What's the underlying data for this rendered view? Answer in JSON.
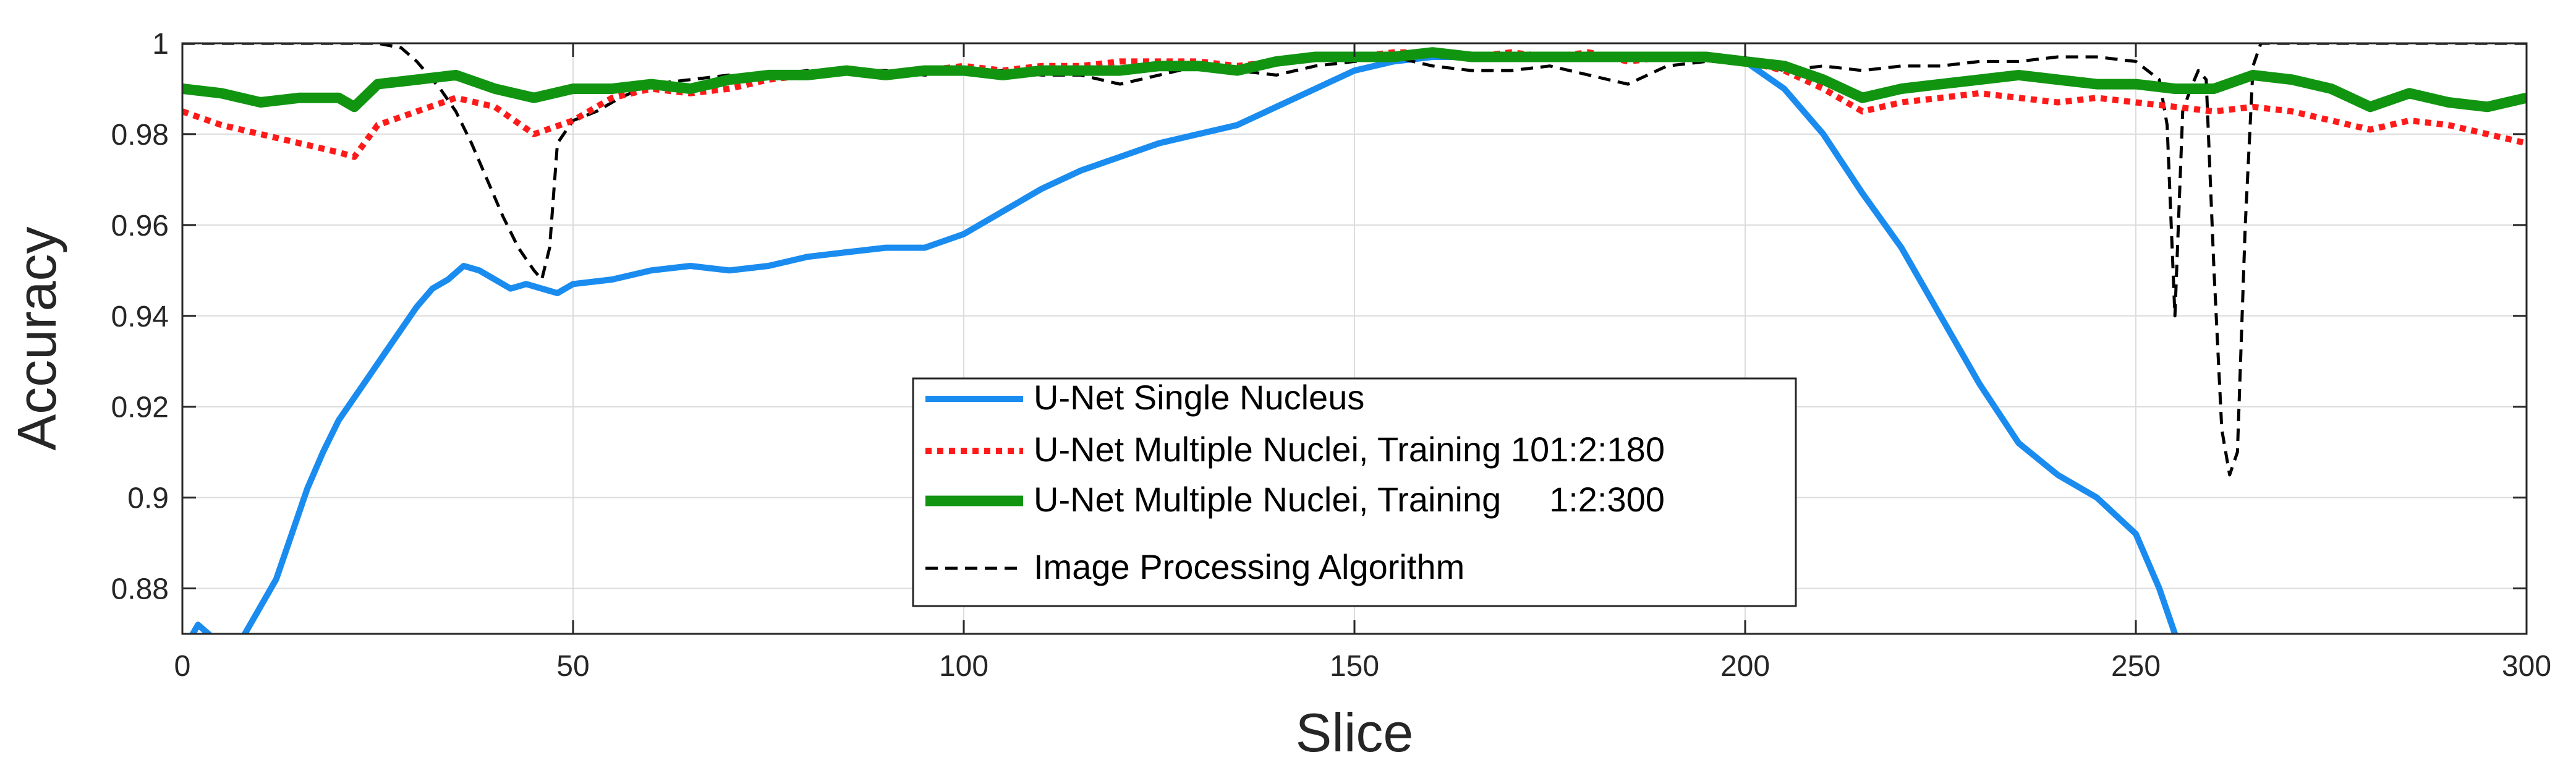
{
  "chart_data": {
    "type": "line",
    "title": "",
    "xlabel": "Slice",
    "ylabel": "Accuracy",
    "xlim": [
      0,
      300
    ],
    "ylim": [
      0.87,
      1.0
    ],
    "xticks": [
      0,
      50,
      100,
      150,
      200,
      250,
      300
    ],
    "yticks": [
      0.88,
      0.9,
      0.92,
      0.94,
      0.96,
      0.98,
      1
    ],
    "xtick_labels": [
      "0",
      "50",
      "100",
      "150",
      "200",
      "250",
      "300"
    ],
    "ytick_labels": [
      "0.88",
      "0.9",
      "0.92",
      "0.94",
      "0.96",
      "0.98",
      "1"
    ],
    "grid": true,
    "legend_position": "lower-center",
    "series": [
      {
        "name": "U-Net Single Nucleus",
        "color": "#1a8cf0",
        "style": "solid",
        "x": [
          0,
          2,
          4,
          6,
          8,
          10,
          12,
          14,
          16,
          18,
          20,
          22,
          24,
          26,
          28,
          30,
          32,
          34,
          36,
          38,
          40,
          42,
          44,
          46,
          48,
          50,
          55,
          60,
          65,
          70,
          75,
          80,
          85,
          90,
          95,
          100,
          105,
          110,
          115,
          120,
          125,
          130,
          135,
          140,
          145,
          150,
          155,
          160,
          165,
          170,
          175,
          180,
          185,
          190,
          195,
          200,
          205,
          210,
          215,
          220,
          225,
          230,
          235,
          240,
          245,
          250,
          253,
          255
        ],
        "y": [
          0.866,
          0.872,
          0.869,
          0.866,
          0.87,
          0.876,
          0.882,
          0.892,
          0.902,
          0.91,
          0.917,
          0.922,
          0.927,
          0.932,
          0.937,
          0.942,
          0.946,
          0.948,
          0.951,
          0.95,
          0.948,
          0.946,
          0.947,
          0.946,
          0.945,
          0.947,
          0.948,
          0.95,
          0.951,
          0.95,
          0.951,
          0.953,
          0.954,
          0.955,
          0.955,
          0.958,
          0.963,
          0.968,
          0.972,
          0.975,
          0.978,
          0.98,
          0.982,
          0.986,
          0.99,
          0.994,
          0.996,
          0.997,
          0.997,
          0.997,
          0.997,
          0.997,
          0.997,
          0.997,
          0.997,
          0.996,
          0.99,
          0.98,
          0.967,
          0.955,
          0.94,
          0.925,
          0.912,
          0.905,
          0.9,
          0.892,
          0.88,
          0.87
        ]
      },
      {
        "name": "U-Net Multiple Nuclei, Training 101:2:180",
        "color": "#ff1a1a",
        "style": "dotted",
        "x": [
          0,
          5,
          10,
          15,
          20,
          22,
          25,
          30,
          35,
          40,
          45,
          50,
          55,
          60,
          65,
          70,
          75,
          80,
          85,
          90,
          95,
          100,
          105,
          110,
          115,
          120,
          125,
          130,
          135,
          140,
          145,
          150,
          155,
          160,
          165,
          170,
          175,
          180,
          185,
          190,
          195,
          200,
          205,
          210,
          215,
          220,
          225,
          230,
          235,
          240,
          245,
          250,
          255,
          260,
          265,
          270,
          275,
          280,
          285,
          290,
          295,
          300
        ],
        "y": [
          0.985,
          0.982,
          0.98,
          0.978,
          0.976,
          0.975,
          0.982,
          0.985,
          0.988,
          0.986,
          0.98,
          0.983,
          0.988,
          0.99,
          0.989,
          0.99,
          0.992,
          0.993,
          0.994,
          0.993,
          0.994,
          0.995,
          0.994,
          0.995,
          0.995,
          0.996,
          0.996,
          0.996,
          0.995,
          0.996,
          0.997,
          0.997,
          0.998,
          0.998,
          0.997,
          0.998,
          0.997,
          0.998,
          0.996,
          0.997,
          0.997,
          0.996,
          0.994,
          0.99,
          0.985,
          0.987,
          0.988,
          0.989,
          0.988,
          0.987,
          0.988,
          0.987,
          0.986,
          0.985,
          0.986,
          0.985,
          0.983,
          0.981,
          0.983,
          0.982,
          0.98,
          0.978
        ]
      },
      {
        "name": "U-Net Multiple Nuclei, Training     1:2:300",
        "color": "#119511",
        "style": "solid-thick",
        "x": [
          0,
          5,
          10,
          15,
          20,
          22,
          25,
          30,
          35,
          40,
          45,
          50,
          55,
          60,
          65,
          70,
          75,
          80,
          85,
          90,
          95,
          100,
          105,
          110,
          115,
          120,
          125,
          130,
          135,
          140,
          145,
          150,
          155,
          160,
          165,
          170,
          175,
          180,
          185,
          190,
          195,
          200,
          205,
          210,
          215,
          220,
          225,
          230,
          235,
          240,
          245,
          250,
          255,
          260,
          265,
          270,
          275,
          280,
          285,
          290,
          295,
          300
        ],
        "y": [
          0.99,
          0.989,
          0.987,
          0.988,
          0.988,
          0.986,
          0.991,
          0.992,
          0.993,
          0.99,
          0.988,
          0.99,
          0.99,
          0.991,
          0.99,
          0.992,
          0.993,
          0.993,
          0.994,
          0.993,
          0.994,
          0.994,
          0.993,
          0.994,
          0.994,
          0.994,
          0.995,
          0.995,
          0.994,
          0.996,
          0.997,
          0.997,
          0.997,
          0.998,
          0.997,
          0.997,
          0.997,
          0.997,
          0.997,
          0.997,
          0.997,
          0.996,
          0.995,
          0.992,
          0.988,
          0.99,
          0.991,
          0.992,
          0.993,
          0.992,
          0.991,
          0.991,
          0.99,
          0.99,
          0.993,
          0.992,
          0.99,
          0.986,
          0.989,
          0.987,
          0.986,
          0.988
        ]
      },
      {
        "name": "Image Processing Algorithm",
        "color": "#000000",
        "style": "dashed",
        "x": [
          0,
          5,
          10,
          15,
          20,
          25,
          28,
          30,
          33,
          35,
          37,
          39,
          41,
          43,
          45,
          46,
          47,
          48,
          50,
          53,
          56,
          60,
          65,
          70,
          75,
          80,
          85,
          90,
          95,
          100,
          105,
          110,
          115,
          120,
          125,
          130,
          135,
          140,
          145,
          150,
          155,
          160,
          165,
          170,
          175,
          180,
          185,
          190,
          195,
          200,
          205,
          210,
          215,
          220,
          225,
          230,
          235,
          240,
          245,
          250,
          253,
          254,
          255,
          256,
          257,
          258,
          259,
          260,
          261,
          262,
          263,
          264,
          265,
          266,
          270,
          280,
          290,
          300
        ],
        "y": [
          1.0,
          1.0,
          1.0,
          1.0,
          1.0,
          1.0,
          0.999,
          0.996,
          0.99,
          0.985,
          0.978,
          0.97,
          0.962,
          0.955,
          0.95,
          0.948,
          0.955,
          0.978,
          0.983,
          0.985,
          0.988,
          0.991,
          0.992,
          0.993,
          0.993,
          0.994,
          0.994,
          0.994,
          0.993,
          0.994,
          0.994,
          0.993,
          0.993,
          0.991,
          0.993,
          0.995,
          0.994,
          0.993,
          0.995,
          0.996,
          0.997,
          0.995,
          0.994,
          0.994,
          0.995,
          0.993,
          0.991,
          0.995,
          0.996,
          0.996,
          0.994,
          0.995,
          0.994,
          0.995,
          0.995,
          0.996,
          0.996,
          0.997,
          0.997,
          0.996,
          0.992,
          0.982,
          0.94,
          0.985,
          0.99,
          0.994,
          0.992,
          0.95,
          0.915,
          0.905,
          0.91,
          0.96,
          0.995,
          1.0,
          1.0,
          1.0,
          1.0,
          1.0
        ]
      }
    ]
  }
}
